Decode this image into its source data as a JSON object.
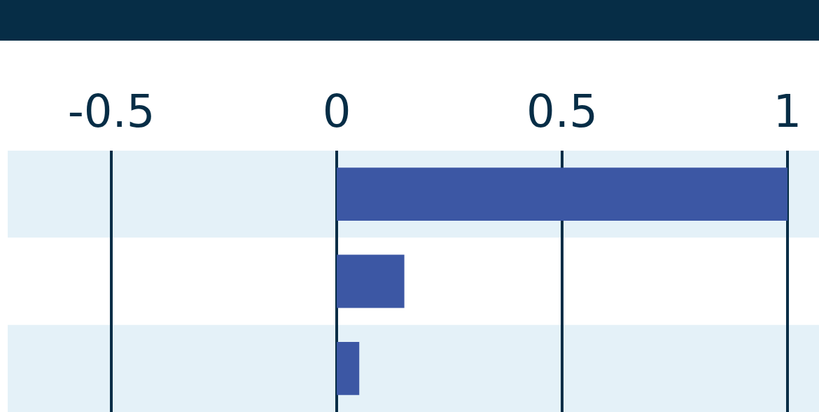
{
  "chart_data": {
    "type": "bar",
    "orientation": "horizontal",
    "categories": [
      null,
      null,
      null
    ],
    "values": [
      1.0,
      0.15,
      0.05
    ],
    "color": "#3c57a4",
    "xlim": [
      -0.73,
      1.07
    ],
    "xticks": [
      -0.5,
      0,
      0.5,
      1
    ],
    "grid": "x"
  }
}
